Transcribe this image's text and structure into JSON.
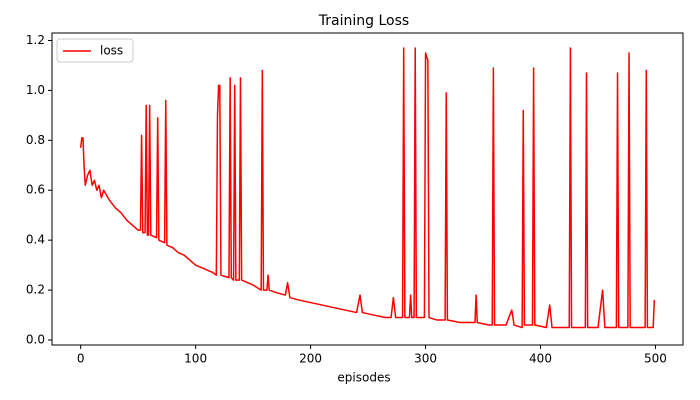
{
  "chart_data": {
    "type": "line",
    "title": "Training Loss",
    "xlabel": "episodes",
    "x": [
      0,
      1,
      2,
      3,
      4,
      6,
      8,
      10,
      12,
      14,
      16,
      18,
      20,
      25,
      30,
      35,
      40,
      45,
      50,
      52,
      53,
      54,
      56,
      57,
      58,
      59,
      60,
      61,
      66,
      67,
      68,
      73,
      74,
      75,
      80,
      85,
      90,
      95,
      100,
      105,
      110,
      115,
      118,
      119,
      120,
      121,
      122,
      129,
      130,
      131,
      133,
      134,
      135,
      138,
      139,
      140,
      145,
      150,
      157,
      158,
      159,
      162,
      163,
      164,
      170,
      178,
      180,
      182,
      190,
      200,
      210,
      220,
      230,
      240,
      243,
      245,
      255,
      265,
      270,
      272,
      274,
      280,
      281,
      282,
      286,
      287,
      288,
      290,
      291,
      292,
      299,
      300,
      302,
      303,
      310,
      317,
      318,
      319,
      330,
      343,
      344,
      345,
      355,
      358,
      359,
      360,
      370,
      375,
      377,
      384,
      385,
      386,
      393,
      394,
      395,
      405,
      408,
      410,
      425,
      426,
      427,
      435,
      439,
      440,
      441,
      450,
      454,
      456,
      466,
      467,
      468,
      476,
      477,
      478,
      491,
      492,
      493,
      498,
      499
    ],
    "series": [
      {
        "name": "loss",
        "color": "#ff0000",
        "values": [
          0.77,
          0.81,
          0.81,
          0.69,
          0.62,
          0.66,
          0.68,
          0.62,
          0.64,
          0.6,
          0.62,
          0.57,
          0.6,
          0.56,
          0.53,
          0.51,
          0.48,
          0.46,
          0.44,
          0.44,
          0.82,
          0.43,
          0.43,
          0.94,
          0.42,
          0.42,
          0.94,
          0.42,
          0.41,
          0.89,
          0.4,
          0.39,
          0.96,
          0.38,
          0.37,
          0.35,
          0.34,
          0.32,
          0.3,
          0.29,
          0.28,
          0.27,
          0.26,
          0.9,
          1.02,
          1.02,
          0.26,
          0.25,
          1.05,
          0.25,
          0.24,
          1.02,
          0.24,
          0.24,
          1.05,
          0.24,
          0.23,
          0.22,
          0.2,
          1.08,
          0.2,
          0.2,
          0.26,
          0.2,
          0.19,
          0.18,
          0.23,
          0.17,
          0.16,
          0.15,
          0.14,
          0.13,
          0.12,
          0.11,
          0.18,
          0.11,
          0.1,
          0.09,
          0.09,
          0.17,
          0.09,
          0.09,
          1.17,
          0.09,
          0.09,
          0.18,
          0.09,
          0.09,
          1.17,
          0.09,
          0.09,
          1.15,
          1.12,
          0.09,
          0.08,
          0.08,
          0.99,
          0.08,
          0.07,
          0.07,
          0.18,
          0.07,
          0.06,
          0.06,
          1.09,
          0.06,
          0.06,
          0.12,
          0.06,
          0.05,
          0.92,
          0.06,
          0.06,
          1.09,
          0.06,
          0.05,
          0.14,
          0.05,
          0.05,
          1.17,
          0.05,
          0.05,
          0.05,
          1.07,
          0.05,
          0.05,
          0.2,
          0.05,
          0.05,
          1.07,
          0.05,
          0.05,
          1.15,
          0.05,
          0.05,
          1.08,
          0.05,
          0.05,
          0.16
        ]
      }
    ],
    "xlim": [
      -24.95,
      523.95
    ],
    "ylim": [
      -0.02,
      1.23
    ],
    "xticks": [
      0,
      100,
      200,
      300,
      400,
      500
    ],
    "yticks": [
      {
        "value": 0,
        "label": "0.0"
      },
      0.2,
      0.4,
      0.6,
      0.8,
      {
        "value": 1,
        "label": "1.0"
      },
      1.2
    ],
    "legend": "upper left",
    "grid": false
  }
}
